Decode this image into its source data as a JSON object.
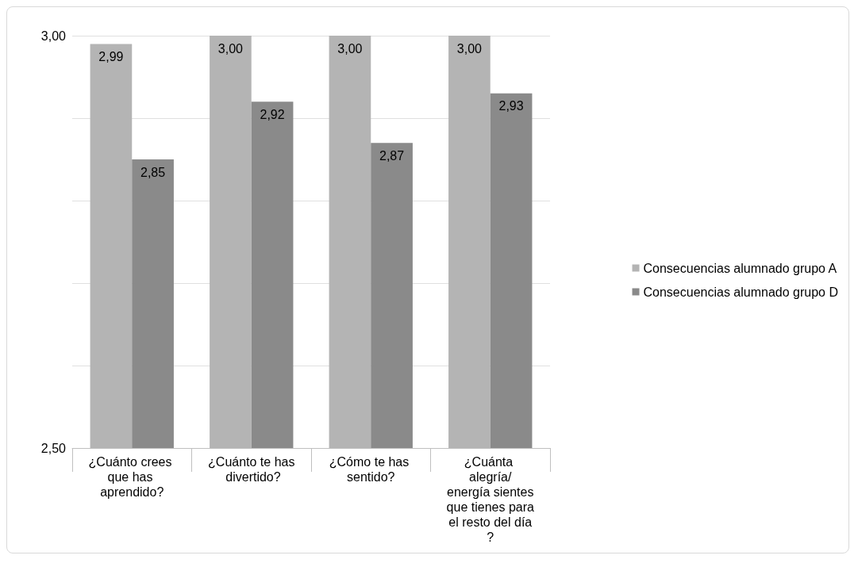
{
  "chart_data": {
    "type": "bar",
    "categories": [
      "¿Cuánto crees que has aprendido?",
      "¿Cuánto te has divertido?",
      "¿Cómo te has sentido?",
      "¿Cuánta alegría/energía sientes que tienes para el resto del día?"
    ],
    "series": [
      {
        "name": "Consecuencias alumnado grupo A",
        "color": "#b4b4b4",
        "values": [
          2.99,
          3.0,
          3.0,
          3.0
        ],
        "value_labels": [
          "2,99",
          "3,00",
          "3,00",
          "3,00"
        ]
      },
      {
        "name": "Consecuencias alumnado grupo D",
        "color": "#8a8a8a",
        "values": [
          2.85,
          2.92,
          2.87,
          2.93
        ],
        "value_labels": [
          "2,85",
          "2,92",
          "2,87",
          "2,93"
        ]
      }
    ],
    "ylim": [
      2.5,
      3.0
    ],
    "yticks": [
      {
        "value": 2.5,
        "label": "2,50"
      },
      {
        "value": 2.6,
        "label": null
      },
      {
        "value": 2.7,
        "label": null
      },
      {
        "value": 2.8,
        "label": null
      },
      {
        "value": 2.9,
        "label": null
      },
      {
        "value": 3.0,
        "label": "3,00"
      }
    ],
    "grid": "y",
    "legend": "right"
  }
}
